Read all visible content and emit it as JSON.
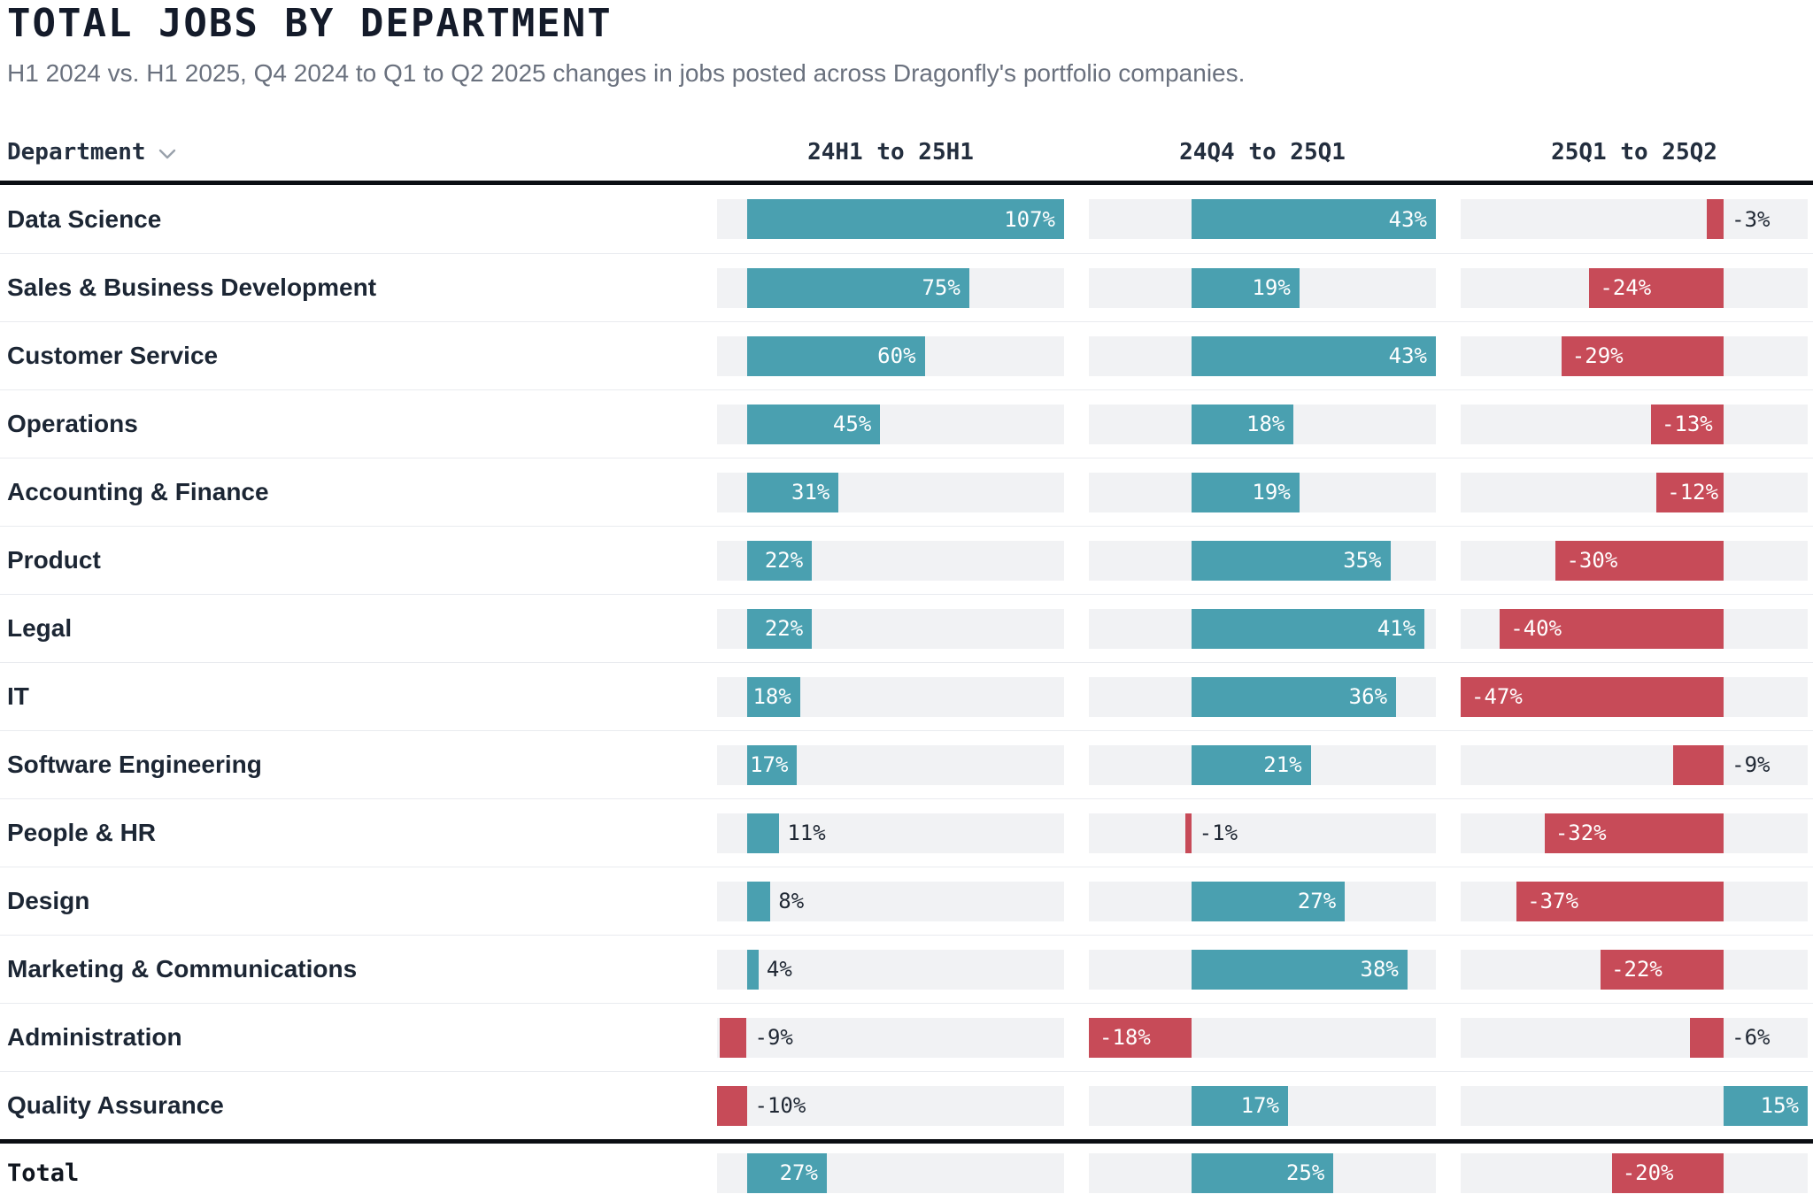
{
  "table": {
    "department_header": "Department",
    "total_label": "Total",
    "sort_icon": "chevron-down-icon"
  },
  "colors": {
    "positive": "#4AA0B0",
    "negative": "#C74B58",
    "track": "#F1F2F4",
    "separator": "#E9EBEF",
    "rule": "#0B0E13",
    "title": "#141B2A",
    "subtitle": "#6A717E",
    "header_text": "#232E3E",
    "row_label": "#1C2634",
    "outside_label": "#1F2733",
    "chevron": "#99A1AB"
  },
  "chart_data": {
    "type": "bar",
    "orientation": "horizontal",
    "title": "TOTAL JOBS BY DEPARTMENT",
    "subtitle": "H1 2024 vs. H1 2025, Q4 2024 to Q1 to Q2 2025 changes in jobs posted across Dragonfly's portfolio companies.",
    "unit": "%",
    "grid": false,
    "legend_position": "none",
    "categories": [
      "Data Science",
      "Sales & Business Development",
      "Customer Service",
      "Operations",
      "Accounting & Finance",
      "Product",
      "Legal",
      "IT",
      "Software Engineering",
      "People & HR",
      "Design",
      "Marketing & Communications",
      "Administration",
      "Quality Assurance"
    ],
    "series": [
      {
        "name": "24H1 to 25H1",
        "values": [
          107,
          75,
          60,
          45,
          31,
          22,
          22,
          18,
          17,
          11,
          8,
          4,
          -9,
          -10
        ],
        "total": 27,
        "axis_range": [
          -10,
          107
        ]
      },
      {
        "name": "24Q4 to 25Q1",
        "values": [
          43,
          19,
          43,
          18,
          19,
          35,
          41,
          36,
          21,
          -1,
          27,
          38,
          -18,
          17
        ],
        "total": 25,
        "axis_range": [
          -18,
          43
        ]
      },
      {
        "name": "25Q1 to 25Q2",
        "values": [
          -3,
          -24,
          -29,
          -13,
          -12,
          -30,
          -40,
          -47,
          -9,
          -32,
          -37,
          -22,
          -6,
          15
        ],
        "total": -20,
        "axis_range": [
          -47,
          15
        ]
      }
    ]
  }
}
